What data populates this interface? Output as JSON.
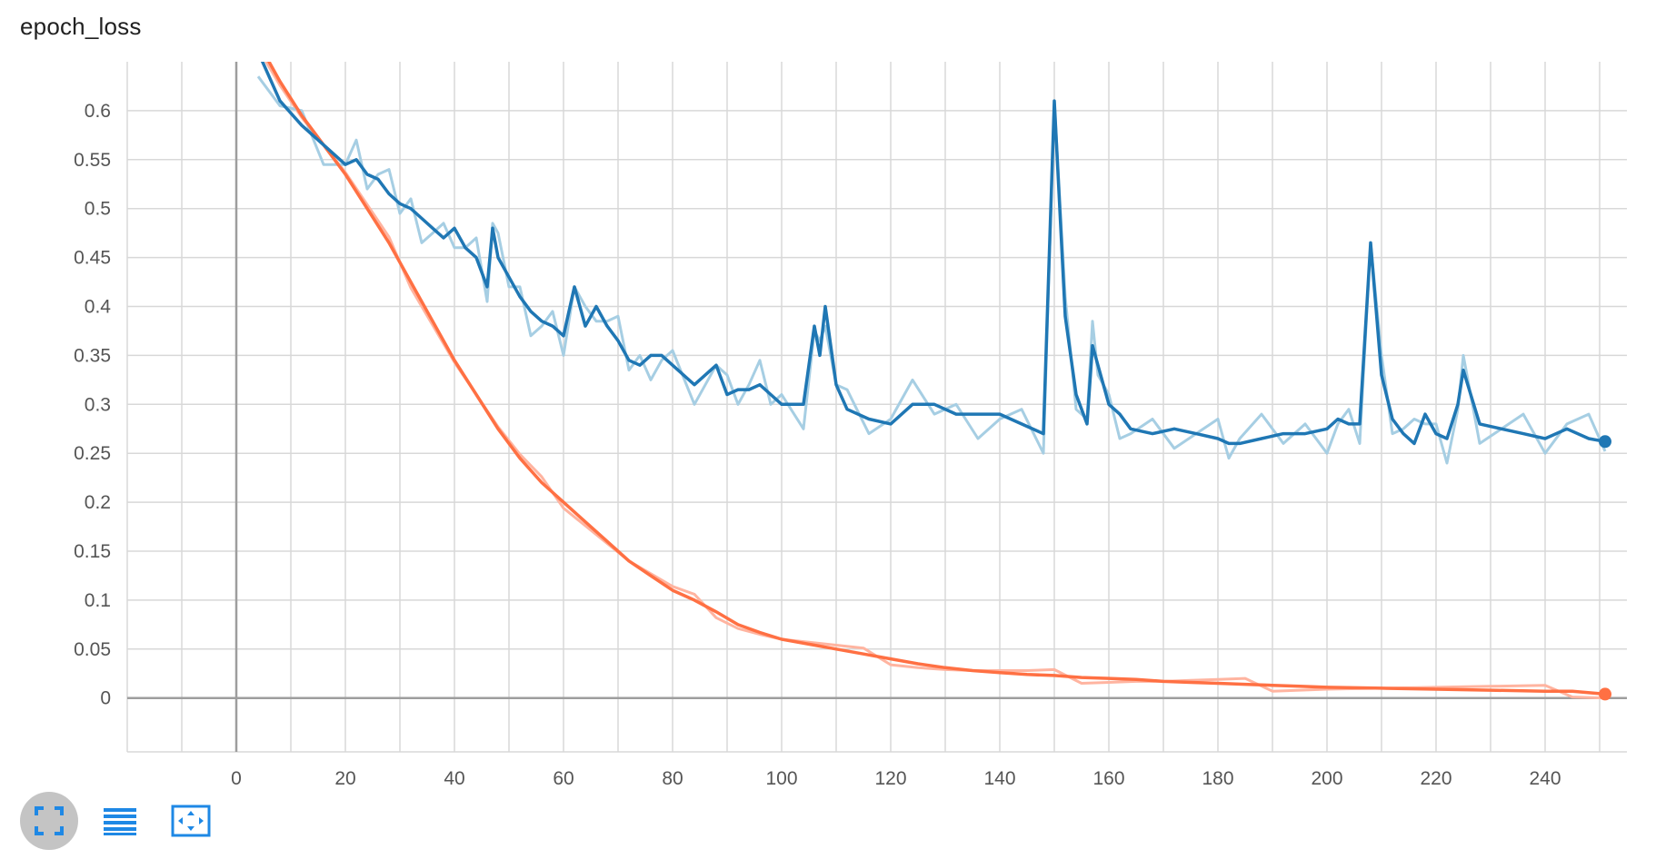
{
  "title": "epoch_loss",
  "colors": {
    "blue_series": "#1f77b4",
    "blue_raw": "#a6cee3",
    "orange_series": "#ff7043",
    "orange_raw": "#ffb4a0",
    "grid": "#d8d8d8",
    "zero_axis": "#9e9e9e",
    "toolbar_icon": "#1e88e5"
  },
  "toolbar": {
    "buttons": [
      {
        "name": "fit-domain-button",
        "icon": "expand-icon",
        "active": true
      },
      {
        "name": "toggle-log-button",
        "icon": "list-icon",
        "active": false
      },
      {
        "name": "fit-screen-button",
        "icon": "fit-to-screen-icon",
        "active": false
      }
    ]
  },
  "chart_data": {
    "type": "line",
    "title": "epoch_loss",
    "xlabel": "",
    "ylabel": "",
    "xlim": [
      -20,
      255
    ],
    "ylim": [
      -0.055,
      0.65
    ],
    "x_ticks": [
      0,
      20,
      40,
      60,
      80,
      100,
      120,
      140,
      160,
      180,
      200,
      220,
      240
    ],
    "y_ticks": [
      0,
      0.05,
      0.1,
      0.15,
      0.2,
      0.25,
      0.3,
      0.35,
      0.4,
      0.45,
      0.5,
      0.55,
      0.6
    ],
    "x_tick_labels": [
      "0",
      "20",
      "40",
      "60",
      "80",
      "100",
      "120",
      "140",
      "160",
      "180",
      "200",
      "220",
      "240"
    ],
    "y_tick_labels": [
      "0",
      "0.05",
      "0.1",
      "0.15",
      "0.2",
      "0.25",
      "0.3",
      "0.35",
      "0.4",
      "0.45",
      "0.5",
      "0.55",
      "0.6"
    ],
    "grid": true,
    "series": [
      {
        "x": [
          4,
          8,
          12,
          16,
          20,
          22,
          24,
          26,
          28,
          30,
          32,
          34,
          36,
          38,
          40,
          42,
          44,
          46,
          47,
          48,
          50,
          52,
          54,
          56,
          58,
          60,
          62,
          64,
          66,
          68,
          70,
          72,
          74,
          76,
          78,
          80,
          84,
          88,
          90,
          92,
          94,
          96,
          98,
          100,
          104,
          106,
          107,
          108,
          110,
          112,
          116,
          120,
          124,
          128,
          132,
          136,
          140,
          144,
          148,
          150,
          152,
          154,
          156,
          157,
          158,
          160,
          162,
          164,
          168,
          172,
          176,
          180,
          182,
          184,
          188,
          192,
          196,
          200,
          202,
          204,
          206,
          208,
          210,
          212,
          214,
          216,
          218,
          220,
          222,
          224,
          225,
          228,
          232,
          236,
          240,
          244,
          248,
          251
        ],
        "y": [
          0.66,
          0.61,
          0.585,
          0.565,
          0.545,
          0.55,
          0.535,
          0.53,
          0.515,
          0.505,
          0.5,
          0.49,
          0.48,
          0.47,
          0.48,
          0.46,
          0.45,
          0.42,
          0.48,
          0.45,
          0.43,
          0.41,
          0.395,
          0.385,
          0.38,
          0.37,
          0.42,
          0.38,
          0.4,
          0.38,
          0.365,
          0.345,
          0.34,
          0.35,
          0.35,
          0.34,
          0.32,
          0.34,
          0.31,
          0.315,
          0.315,
          0.32,
          0.31,
          0.3,
          0.3,
          0.38,
          0.35,
          0.4,
          0.32,
          0.295,
          0.285,
          0.28,
          0.3,
          0.3,
          0.29,
          0.29,
          0.29,
          0.28,
          0.27,
          0.61,
          0.39,
          0.31,
          0.28,
          0.36,
          0.34,
          0.3,
          0.29,
          0.275,
          0.27,
          0.275,
          0.27,
          0.265,
          0.26,
          0.26,
          0.265,
          0.27,
          0.27,
          0.275,
          0.285,
          0.28,
          0.28,
          0.465,
          0.33,
          0.285,
          0.27,
          0.26,
          0.29,
          0.27,
          0.265,
          0.3,
          0.335,
          0.28,
          0.275,
          0.27,
          0.265,
          0.275,
          0.265,
          0.262
        ]
      },
      {
        "x": [
          4,
          8,
          12,
          16,
          20,
          24,
          28,
          32,
          36,
          40,
          44,
          48,
          52,
          56,
          60,
          64,
          68,
          72,
          76,
          80,
          84,
          88,
          92,
          96,
          100,
          105,
          110,
          115,
          120,
          125,
          130,
          135,
          140,
          145,
          150,
          155,
          160,
          165,
          170,
          175,
          180,
          185,
          190,
          195,
          200,
          210,
          220,
          230,
          240,
          245,
          251
        ],
        "y": [
          0.67,
          0.63,
          0.595,
          0.565,
          0.535,
          0.5,
          0.465,
          0.425,
          0.385,
          0.345,
          0.31,
          0.275,
          0.245,
          0.22,
          0.2,
          0.18,
          0.16,
          0.14,
          0.125,
          0.11,
          0.1,
          0.088,
          0.075,
          0.067,
          0.06,
          0.055,
          0.05,
          0.045,
          0.04,
          0.035,
          0.031,
          0.028,
          0.026,
          0.024,
          0.023,
          0.021,
          0.02,
          0.019,
          0.017,
          0.016,
          0.015,
          0.014,
          0.013,
          0.012,
          0.011,
          0.01,
          0.009,
          0.008,
          0.007,
          0.007,
          0.004
        ]
      }
    ]
  }
}
